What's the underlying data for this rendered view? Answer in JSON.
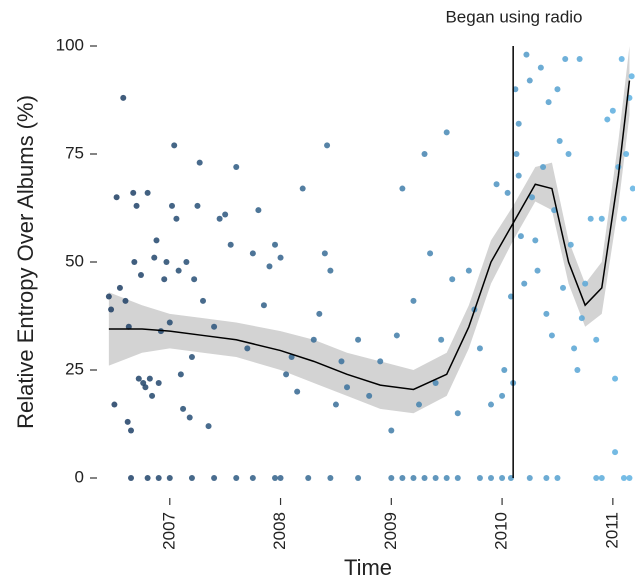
{
  "chart_data": {
    "type": "scatter",
    "x_label": "Time",
    "y_label": "Relative Entropy Over Albums (%)",
    "annotation": "Began using radio",
    "vline": 2010.1,
    "xlim": [
      2006.37,
      2011.2
    ],
    "ylim": [
      0,
      100
    ],
    "xticks": [
      2007,
      2008,
      2009,
      2010,
      2011
    ],
    "yticks": [
      0,
      25,
      50,
      75,
      100
    ],
    "color_range": [
      "#1b3a5f",
      "#5fb2e3"
    ],
    "line_color": "#000000",
    "band_color": "#d3d3d3",
    "points": {
      "x": [
        2006.45,
        2006.47,
        2006.5,
        2006.52,
        2006.55,
        2006.58,
        2006.6,
        2006.62,
        2006.63,
        2006.65,
        2006.67,
        2006.68,
        2006.7,
        2006.72,
        2006.74,
        2006.76,
        2006.78,
        2006.8,
        2006.82,
        2006.84,
        2006.86,
        2006.88,
        2006.9,
        2006.92,
        2006.95,
        2006.97,
        2007.0,
        2007.02,
        2007.04,
        2007.06,
        2007.08,
        2007.1,
        2007.12,
        2007.15,
        2007.18,
        2007.2,
        2007.22,
        2007.25,
        2007.27,
        2007.3,
        2007.35,
        2007.4,
        2007.45,
        2007.5,
        2007.55,
        2007.6,
        2007.7,
        2007.75,
        2007.8,
        2007.85,
        2007.9,
        2007.95,
        2008.0,
        2008.05,
        2008.1,
        2008.15,
        2008.2,
        2008.3,
        2008.35,
        2008.4,
        2008.42,
        2008.45,
        2008.5,
        2008.55,
        2008.6,
        2008.7,
        2008.8,
        2008.9,
        2009.0,
        2009.05,
        2009.1,
        2009.2,
        2009.25,
        2009.3,
        2009.35,
        2009.4,
        2009.45,
        2009.5,
        2009.55,
        2009.6,
        2009.7,
        2009.75,
        2009.8,
        2009.9,
        2009.95,
        2010.0,
        2010.02,
        2010.05,
        2010.08,
        2010.1,
        2006.65,
        2006.8,
        2006.9,
        2007.0,
        2007.2,
        2007.4,
        2007.6,
        2007.75,
        2007.95,
        2008.0,
        2008.25,
        2008.45,
        2008.7,
        2009.0,
        2009.1,
        2009.2,
        2009.3,
        2009.4,
        2009.5,
        2009.6,
        2009.8,
        2009.9,
        2010.0,
        2010.08,
        2010.12,
        2010.13,
        2010.15,
        2010.15,
        2010.17,
        2010.2,
        2010.22,
        2010.25,
        2010.27,
        2010.3,
        2010.32,
        2010.35,
        2010.37,
        2010.4,
        2010.42,
        2010.45,
        2010.47,
        2010.5,
        2010.52,
        2010.55,
        2010.57,
        2010.6,
        2010.62,
        2010.65,
        2010.68,
        2010.7,
        2010.72,
        2010.75,
        2010.8,
        2010.85,
        2010.9,
        2010.95,
        2011.0,
        2011.02,
        2011.05,
        2011.08,
        2011.1,
        2011.12,
        2011.15,
        2011.17,
        2011.18,
        2010.25,
        2010.4,
        2010.5,
        2010.85,
        2010.9,
        2011.1,
        2011.15,
        2011.02
      ],
      "y": [
        42,
        39,
        17,
        65,
        44,
        88,
        41,
        13,
        35,
        11,
        66,
        50,
        63,
        23,
        47,
        22,
        21,
        66,
        23,
        19,
        51,
        55,
        22,
        34,
        46,
        50,
        36,
        63,
        77,
        60,
        48,
        24,
        16,
        50,
        14,
        28,
        46,
        63,
        73,
        41,
        12,
        35,
        60,
        61,
        54,
        72,
        30,
        52,
        62,
        40,
        49,
        54,
        51,
        24,
        28,
        20,
        67,
        32,
        38,
        52,
        77,
        48,
        17,
        27,
        21,
        32,
        19,
        27,
        11,
        33,
        67,
        41,
        17,
        75,
        52,
        22,
        32,
        80,
        46,
        15,
        48,
        39,
        30,
        17,
        68,
        19,
        25,
        66,
        42,
        22,
        0,
        0,
        0,
        0,
        0,
        0,
        0,
        0,
        0,
        0,
        0,
        0,
        0,
        0,
        0,
        0,
        0,
        0,
        0,
        0,
        0,
        0,
        0,
        0,
        90,
        75,
        70,
        82,
        56,
        45,
        98,
        92,
        65,
        55,
        48,
        95,
        72,
        38,
        87,
        33,
        62,
        90,
        78,
        44,
        97,
        75,
        54,
        30,
        25,
        97,
        37,
        45,
        60,
        32,
        60,
        83,
        85,
        23,
        72,
        97,
        60,
        75,
        88,
        93,
        67,
        0,
        0,
        0,
        0,
        0,
        0,
        0,
        6
      ]
    },
    "smooth": {
      "x": [
        2006.45,
        2006.75,
        2007.0,
        2007.3,
        2007.6,
        2008.0,
        2008.3,
        2008.6,
        2008.9,
        2009.2,
        2009.5,
        2009.7,
        2009.9,
        2010.1,
        2010.3,
        2010.45,
        2010.6,
        2010.75,
        2010.9,
        2011.05,
        2011.15
      ],
      "y": [
        34.5,
        34.5,
        34,
        33,
        32,
        29.5,
        27,
        24,
        21.5,
        20.5,
        24,
        35,
        50,
        59,
        68,
        67,
        50,
        40,
        44,
        70,
        92
      ],
      "lower": [
        26,
        29,
        30,
        29,
        28,
        25,
        22,
        19,
        16,
        15,
        19,
        30,
        45,
        55,
        64,
        62,
        45,
        35,
        38,
        63,
        84
      ],
      "upper": [
        43,
        40,
        38,
        37,
        36,
        34,
        32,
        29,
        27,
        25,
        29,
        40,
        55,
        63,
        72,
        73,
        55,
        45,
        50,
        78,
        100
      ]
    }
  }
}
